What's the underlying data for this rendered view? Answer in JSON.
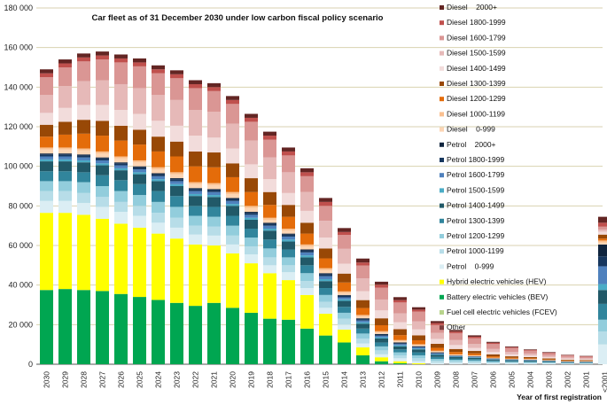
{
  "chart_data": {
    "type": "bar",
    "stacked": true,
    "title": "Car fleet as of 31 December 2030 under low carbon fiscal policy scenario",
    "xlabel": "Year of first registration",
    "ylabel": "",
    "ylim": [
      0,
      180000
    ],
    "yticks": [
      0,
      20000,
      40000,
      60000,
      80000,
      100000,
      120000,
      140000,
      160000,
      180000
    ],
    "ytick_labels": [
      "0",
      "20 000",
      "40 000",
      "60 000",
      "80 000",
      "100 000",
      "120 000",
      "140 000",
      "160 000",
      "180 000"
    ],
    "grid": true,
    "legend_position": "right",
    "categories": [
      "2030",
      "2029",
      "2028",
      "2027",
      "2026",
      "2025",
      "2024",
      "2023",
      "2022",
      "2021",
      "2020",
      "2019",
      "2018",
      "2017",
      "2016",
      "2015",
      "2014",
      "2013",
      "2012",
      "2011",
      "2010",
      "2009",
      "2008",
      "2007",
      "2006",
      "2005",
      "2004",
      "2003",
      "2002",
      "2001",
      "<2001"
    ],
    "series": [
      {
        "name": "Other",
        "color": "#7f3f3f",
        "values": [
          0,
          0,
          0,
          0,
          0,
          0,
          0,
          0,
          0,
          0,
          0,
          0,
          0,
          0,
          0,
          0,
          0,
          0,
          0,
          0,
          0,
          0,
          0,
          0,
          0,
          0,
          0,
          0,
          0,
          0,
          0
        ]
      },
      {
        "name": "Fuel cell electric vehicles (FCEV)",
        "color": "#b8d48c",
        "values": [
          0,
          0,
          0,
          0,
          0,
          0,
          0,
          0,
          0,
          0,
          0,
          0,
          0,
          0,
          0,
          0,
          0,
          0,
          0,
          0,
          0,
          0,
          0,
          0,
          0,
          0,
          0,
          0,
          0,
          0,
          0
        ]
      },
      {
        "name": "Battery electric vehicles (BEV)",
        "color": "#00a651",
        "values": [
          37500,
          38000,
          37500,
          37000,
          35500,
          34000,
          32500,
          31000,
          29500,
          31000,
          28500,
          26000,
          23000,
          22500,
          18000,
          14500,
          11000,
          4500,
          1500,
          500,
          0,
          0,
          0,
          0,
          0,
          0,
          0,
          0,
          0,
          0,
          0
        ]
      },
      {
        "name": "Hybrid electric vehicles (HEV)",
        "color": "#ffff00",
        "values": [
          39000,
          38500,
          38000,
          36500,
          35500,
          35000,
          33500,
          32500,
          31000,
          29000,
          27500,
          25000,
          23000,
          20000,
          17000,
          11000,
          6500,
          4000,
          2000,
          1000,
          500,
          0,
          0,
          0,
          0,
          0,
          0,
          0,
          0,
          0,
          0
        ]
      },
      {
        "name": "Petrol    0-999",
        "color": "#dbeef4",
        "values": [
          6000,
          6000,
          6000,
          6000,
          6000,
          6000,
          5500,
          5500,
          5000,
          5000,
          4500,
          4500,
          4000,
          4000,
          3500,
          3000,
          2500,
          2000,
          1500,
          1500,
          1000,
          700,
          600,
          500,
          400,
          400,
          300,
          300,
          200,
          200,
          10000
        ]
      },
      {
        "name": "Petrol 1000-1199",
        "color": "#b7dde8",
        "values": [
          5000,
          5000,
          5000,
          5000,
          5000,
          5000,
          5000,
          5000,
          4500,
          4500,
          4500,
          4000,
          4000,
          3500,
          3500,
          3000,
          3000,
          2500,
          2000,
          1500,
          1500,
          1000,
          800,
          700,
          500,
          400,
          400,
          300,
          200,
          200,
          6500
        ]
      },
      {
        "name": "Petrol 1200-1299",
        "color": "#92cddc",
        "values": [
          5000,
          5000,
          5500,
          5500,
          5500,
          5500,
          5500,
          5500,
          5000,
          5000,
          5000,
          4500,
          4500,
          4000,
          4000,
          3500,
          3000,
          2500,
          2000,
          1500,
          1500,
          1000,
          800,
          700,
          500,
          400,
          400,
          300,
          200,
          200,
          6000
        ]
      },
      {
        "name": "Petrol 1300-1399",
        "color": "#31859c",
        "values": [
          5000,
          5000,
          5000,
          5500,
          5500,
          5500,
          5500,
          5500,
          5000,
          5000,
          5000,
          4500,
          4500,
          4000,
          4000,
          3500,
          3000,
          2500,
          2000,
          1500,
          1500,
          1000,
          700,
          700,
          500,
          400,
          400,
          300,
          200,
          200,
          8000
        ]
      },
      {
        "name": "Petrol 1400-1499",
        "color": "#215968",
        "values": [
          5000,
          5000,
          5000,
          5000,
          5000,
          5000,
          5000,
          5000,
          5000,
          5000,
          5000,
          4500,
          4500,
          4000,
          4000,
          3500,
          3000,
          2500,
          2000,
          1500,
          1500,
          1000,
          700,
          600,
          500,
          400,
          300,
          300,
          200,
          200,
          7000
        ]
      },
      {
        "name": "Petrol 1500-1599",
        "color": "#4bacc6",
        "values": [
          1000,
          1000,
          1000,
          1000,
          1000,
          1000,
          1000,
          1000,
          1000,
          1000,
          1000,
          1000,
          1000,
          1000,
          1000,
          1000,
          800,
          700,
          600,
          500,
          400,
          300,
          200,
          200,
          100,
          100,
          100,
          100,
          100,
          100,
          3000
        ]
      },
      {
        "name": "Petrol 1600-1799",
        "color": "#4f81bd",
        "values": [
          1500,
          1500,
          1500,
          1500,
          1500,
          1500,
          1500,
          1500,
          1500,
          1500,
          1500,
          1500,
          1500,
          1500,
          1500,
          1500,
          1000,
          900,
          800,
          700,
          600,
          500,
          300,
          300,
          200,
          200,
          200,
          100,
          100,
          100,
          9000
        ]
      },
      {
        "name": "Petrol 1800-1999",
        "color": "#17375e",
        "values": [
          1000,
          1000,
          1000,
          1000,
          1000,
          1000,
          1000,
          1000,
          1000,
          1000,
          1000,
          1000,
          1000,
          1000,
          1000,
          1000,
          800,
          700,
          600,
          500,
          400,
          300,
          200,
          200,
          100,
          100,
          100,
          100,
          100,
          100,
          5000
        ]
      },
      {
        "name": "Petrol    2000+",
        "color": "#0f243e",
        "values": [
          500,
          500,
          500,
          500,
          500,
          500,
          500,
          500,
          500,
          500,
          500,
          500,
          500,
          500,
          500,
          500,
          400,
          400,
          300,
          300,
          200,
          200,
          100,
          100,
          100,
          100,
          100,
          100,
          100,
          100,
          6000
        ]
      },
      {
        "name": "Diesel    0-999",
        "color": "#fcd5b4",
        "values": [
          2000,
          2000,
          2000,
          2000,
          2000,
          2000,
          2000,
          2000,
          2000,
          2000,
          2000,
          2000,
          1500,
          1500,
          1500,
          1500,
          1000,
          1000,
          800,
          700,
          600,
          500,
          400,
          300,
          200,
          200,
          200,
          100,
          100,
          100,
          1000
        ]
      },
      {
        "name": "Diesel 1000-1199",
        "color": "#fac090",
        "values": [
          1000,
          1000,
          1000,
          1000,
          1000,
          1000,
          1000,
          1000,
          1000,
          1000,
          1000,
          1000,
          1000,
          1000,
          1000,
          1000,
          800,
          700,
          600,
          500,
          400,
          300,
          200,
          200,
          200,
          100,
          100,
          100,
          100,
          100,
          1000
        ]
      },
      {
        "name": "Diesel 1200-1299",
        "color": "#e46c0a",
        "values": [
          5500,
          6500,
          7500,
          8000,
          8000,
          8000,
          8000,
          8000,
          8000,
          8000,
          7500,
          7000,
          6500,
          6000,
          5500,
          5000,
          4500,
          3500,
          3000,
          2500,
          2000,
          1500,
          1200,
          1000,
          700,
          500,
          400,
          300,
          300,
          200,
          1000
        ]
      },
      {
        "name": "Diesel 1300-1399",
        "color": "#984806",
        "values": [
          6000,
          6500,
          7000,
          7500,
          7500,
          7500,
          7500,
          7500,
          7500,
          7500,
          7000,
          7000,
          6500,
          6000,
          5500,
          5000,
          4500,
          4000,
          3500,
          3000,
          2500,
          2000,
          1500,
          1200,
          1000,
          700,
          600,
          500,
          400,
          300,
          2000
        ]
      },
      {
        "name": "Diesel 1400-1499",
        "color": "#f2dcdb",
        "values": [
          6000,
          7000,
          7500,
          8000,
          8000,
          8000,
          8000,
          8000,
          8000,
          7500,
          7500,
          7000,
          6500,
          6000,
          6000,
          5500,
          5000,
          4500,
          4000,
          3500,
          3000,
          2500,
          2000,
          1500,
          1200,
          1000,
          800,
          600,
          500,
          400,
          1500
        ]
      },
      {
        "name": "Diesel 1500-1599",
        "color": "#e6b9b8",
        "values": [
          9000,
          11000,
          12000,
          12500,
          13000,
          13000,
          13000,
          13000,
          13000,
          13000,
          12500,
          12000,
          11000,
          10500,
          9500,
          8500,
          7500,
          6500,
          5500,
          4500,
          4000,
          3000,
          2500,
          2000,
          1500,
          1200,
          1000,
          800,
          600,
          500,
          1000
        ]
      },
      {
        "name": "Diesel 1600-1799",
        "color": "#da9694",
        "values": [
          9000,
          9500,
          10000,
          10500,
          11000,
          11000,
          11000,
          11000,
          11000,
          10500,
          10000,
          9500,
          9000,
          8500,
          8000,
          7500,
          7000,
          6500,
          6000,
          5500,
          5000,
          4000,
          3500,
          3000,
          2500,
          2000,
          1500,
          1200,
          1000,
          800,
          1500
        ]
      },
      {
        "name": "Diesel 1800-1999",
        "color": "#c0504d",
        "values": [
          2000,
          2000,
          2000,
          2000,
          2000,
          2000,
          2000,
          2000,
          2000,
          2000,
          2000,
          2000,
          2000,
          2000,
          2000,
          2000,
          1500,
          1500,
          1500,
          1200,
          1000,
          1000,
          800,
          700,
          600,
          400,
          300,
          300,
          200,
          200,
          2000
        ]
      },
      {
        "name": "Diesel    2000+",
        "color": "#632523",
        "values": [
          2000,
          2000,
          2000,
          2000,
          2000,
          2000,
          2000,
          2000,
          2000,
          2000,
          2000,
          2000,
          2000,
          2000,
          2000,
          2000,
          2000,
          2000,
          1500,
          1500,
          1200,
          1000,
          800,
          700,
          500,
          400,
          300,
          300,
          200,
          200,
          3000
        ]
      }
    ]
  }
}
